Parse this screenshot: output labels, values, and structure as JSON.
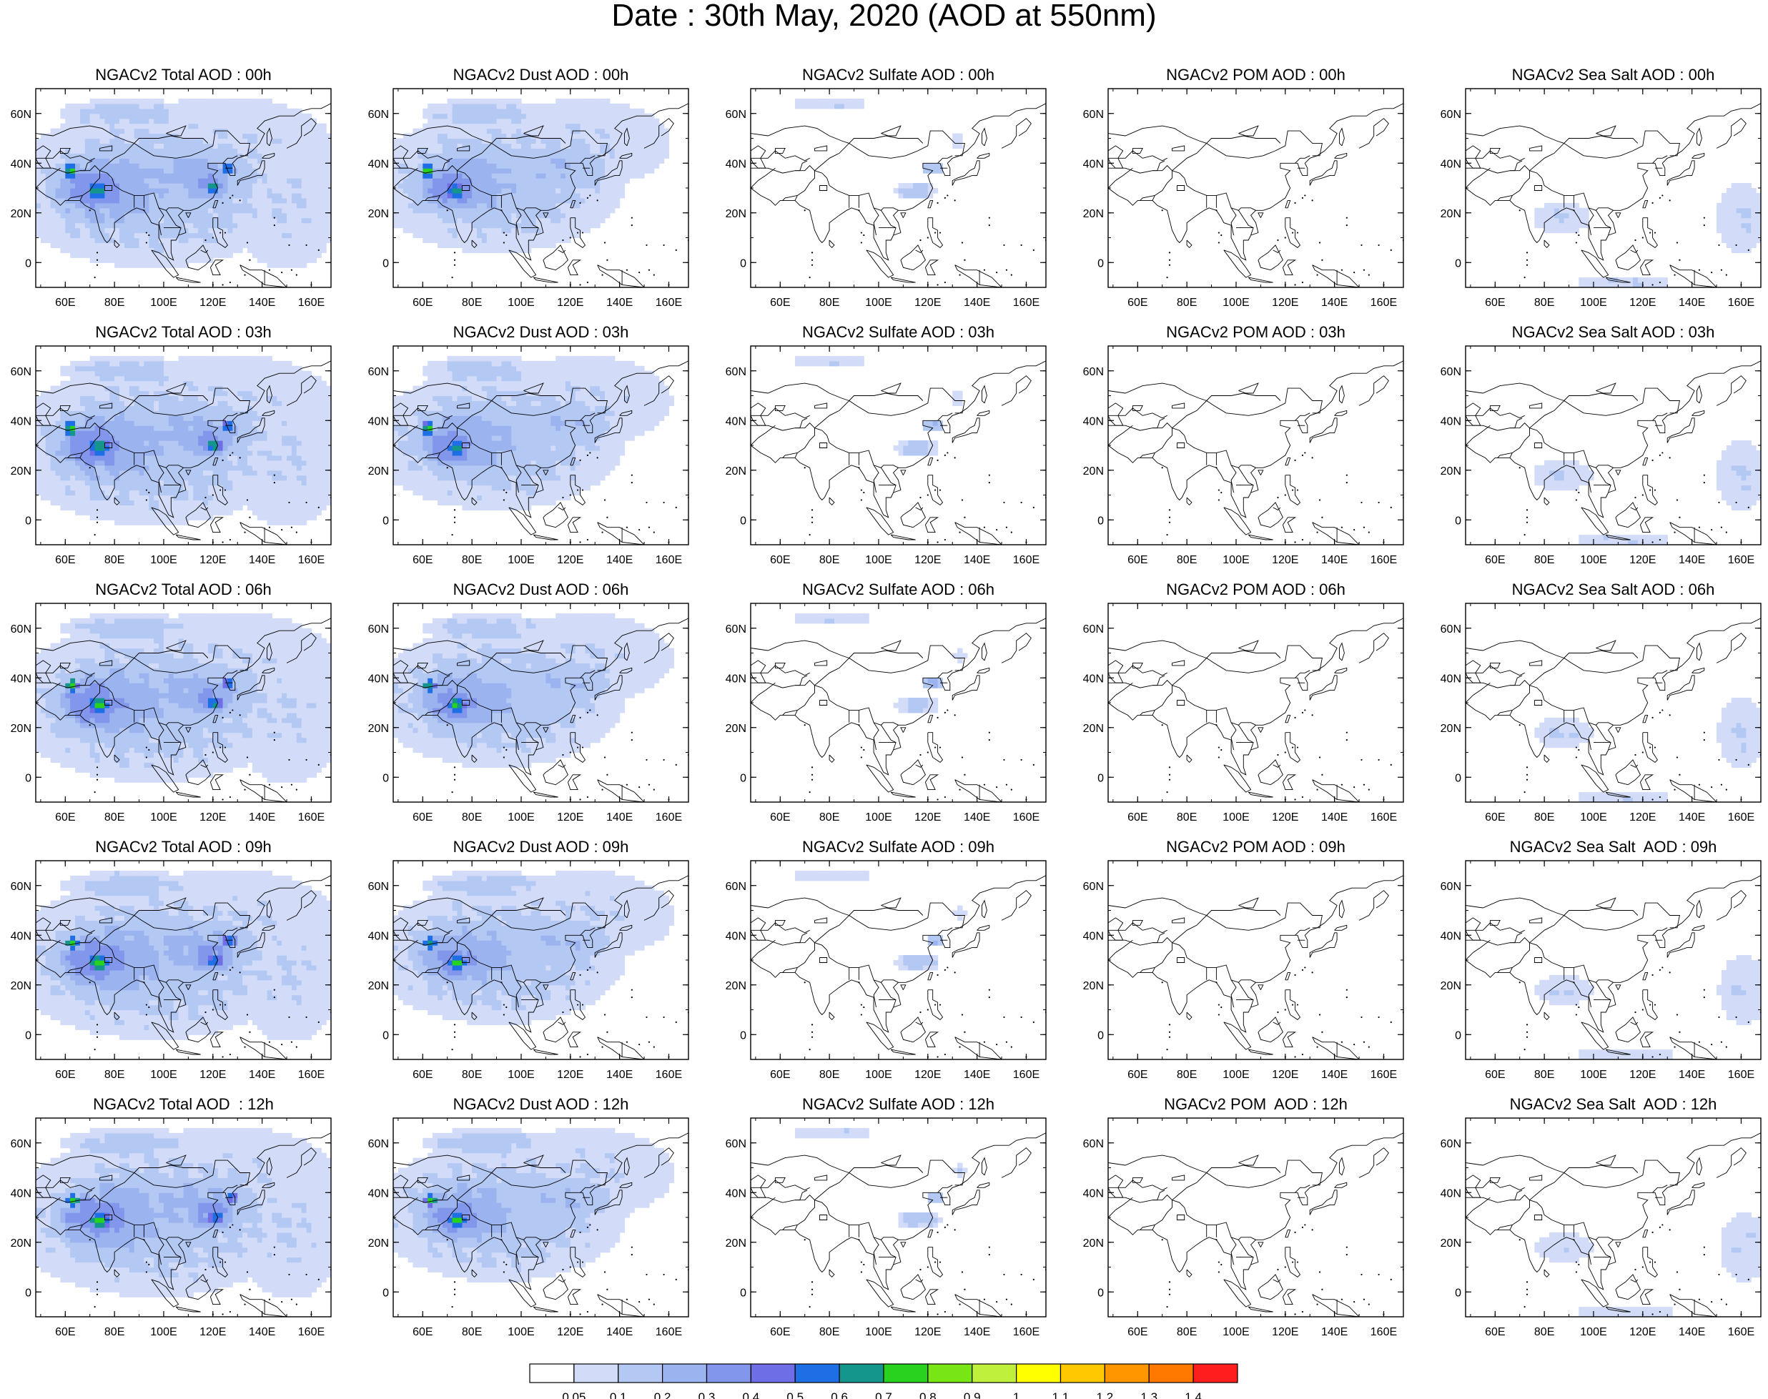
{
  "title": "Date : 30th May, 2020 (AOD at 550nm)",
  "axis_ticks": {
    "lat": [
      "60N",
      "40N",
      "20N",
      "0"
    ],
    "lat_values": [
      60,
      40,
      20,
      0
    ],
    "lon": [
      "60E",
      "80E",
      "100E",
      "120E",
      "140E",
      "160E"
    ],
    "lon_values": [
      60,
      80,
      100,
      120,
      140,
      160
    ]
  },
  "map_extent": {
    "lon_min": 48,
    "lon_max": 168,
    "lat_min": -10,
    "lat_max": 70
  },
  "panels": [
    [
      "NGACv2 Total AOD : 00h",
      "NGACv2 Dust AOD : 00h",
      "NGACv2 Sulfate AOD : 00h",
      "NGACv2 POM AOD : 00h",
      "NGACv2 Sea Salt AOD : 00h"
    ],
    [
      "NGACv2 Total AOD : 03h",
      "NGACv2 Dust AOD : 03h",
      "NGACv2 Sulfate AOD : 03h",
      "NGACv2 POM AOD : 03h",
      "NGACv2 Sea Salt AOD : 03h"
    ],
    [
      "NGACv2 Total AOD : 06h",
      "NGACv2 Dust AOD : 06h",
      "NGACv2 Sulfate AOD : 06h",
      "NGACv2 POM AOD : 06h",
      "NGACv2 Sea Salt AOD : 06h"
    ],
    [
      "NGACv2 Total AOD : 09h",
      "NGACv2 Dust AOD : 09h",
      "NGACv2 Sulfate AOD : 09h",
      "NGACv2 POM AOD : 09h",
      "NGACv2 Sea Salt  AOD : 09h"
    ],
    [
      "NGACv2 Total AOD  : 12h",
      "NGACv2 Dust AOD : 12h",
      "NGACv2 Sulfate AOD : 12h",
      "NGACv2 POM  AOD : 12h",
      "NGACv2 Sea Salt  AOD : 12h"
    ]
  ],
  "colorbar": {
    "labels": [
      "0.05",
      "0.1",
      "0.2",
      "0.3",
      "0.4",
      "0.5",
      "0.6",
      "0.7",
      "0.8",
      "0.9",
      "1",
      "1.1",
      "1.2",
      "1.3",
      "1.4"
    ],
    "colors": [
      "#ffffff",
      "#d2dcf8",
      "#b4c8f4",
      "#9bb4f0",
      "#8296ec",
      "#6e6ee6",
      "#1e6ee6",
      "#14968c",
      "#28d21e",
      "#78e614",
      "#bef03c",
      "#ffff00",
      "#ffc800",
      "#ff9600",
      "#ff7800",
      "#ff1e1e"
    ]
  },
  "chart_data": {
    "type": "heatmap",
    "title": "Date : 30th May, 2020 (AOD at 550nm)",
    "rows": [
      "00h",
      "03h",
      "06h",
      "09h",
      "12h"
    ],
    "columns": [
      "Total",
      "Dust",
      "Sulfate",
      "POM",
      "Sea Salt"
    ],
    "levels": [
      0.05,
      0.1,
      0.2,
      0.3,
      0.4,
      0.5,
      0.6,
      0.7,
      0.8,
      0.9,
      1,
      1.1,
      1.2,
      1.3,
      1.4
    ],
    "extent": {
      "lon": [
        48,
        168
      ],
      "lat": [
        -10,
        70
      ]
    },
    "blobs": {
      "Total": [
        {
          "lon": 95,
          "lat": 30,
          "rlon": 60,
          "rlat": 32,
          "v": 0.12
        },
        {
          "lon": 125,
          "lat": 45,
          "rlon": 45,
          "rlat": 22,
          "v": 0.1
        },
        {
          "lon": 85,
          "lat": 60,
          "rlon": 28,
          "rlat": 6,
          "v": 0.12
        },
        {
          "lon": 150,
          "lat": 25,
          "rlon": 22,
          "rlat": 28,
          "v": 0.1
        },
        {
          "lon": 78,
          "lat": 30,
          "rlon": 26,
          "rlat": 16,
          "v": 0.25
        },
        {
          "lon": 112,
          "lat": 35,
          "rlon": 26,
          "rlat": 12,
          "v": 0.22
        },
        {
          "lon": 72,
          "lat": 30,
          "rlon": 14,
          "rlat": 9,
          "v": 0.38
        },
        {
          "lon": 118,
          "lat": 32,
          "rlon": 9,
          "rlat": 7,
          "v": 0.33
        },
        {
          "lon": 73,
          "lat": 29,
          "rlon": 4,
          "rlat": 3,
          "v": 0.72
        },
        {
          "lon": 62,
          "lat": 37,
          "rlon": 2.5,
          "rlat": 2.5,
          "v": 0.75
        },
        {
          "lon": 120,
          "lat": 30,
          "rlon": 3,
          "rlat": 2.5,
          "v": 0.62
        },
        {
          "lon": 126,
          "lat": 38,
          "rlon": 2.5,
          "rlat": 2,
          "v": 0.6
        }
      ],
      "Dust": [
        {
          "lon": 90,
          "lat": 32,
          "rlon": 52,
          "rlat": 28,
          "v": 0.12
        },
        {
          "lon": 125,
          "lat": 48,
          "rlon": 36,
          "rlat": 18,
          "v": 0.1
        },
        {
          "lon": 85,
          "lat": 60,
          "rlon": 26,
          "rlat": 6,
          "v": 0.12
        },
        {
          "lon": 78,
          "lat": 32,
          "rlon": 24,
          "rlat": 14,
          "v": 0.24
        },
        {
          "lon": 115,
          "lat": 38,
          "rlon": 20,
          "rlat": 9,
          "v": 0.2
        },
        {
          "lon": 72,
          "lat": 30,
          "rlon": 12,
          "rlat": 8,
          "v": 0.36
        },
        {
          "lon": 73,
          "lat": 29,
          "rlon": 3.5,
          "rlat": 2.5,
          "v": 0.72
        },
        {
          "lon": 62,
          "lat": 37,
          "rlon": 2.5,
          "rlat": 2.5,
          "v": 0.72
        }
      ],
      "Sulfate": [
        {
          "lon": 115,
          "lat": 29,
          "rlon": 9,
          "rlat": 4,
          "v": 0.12
        },
        {
          "lon": 122,
          "lat": 38,
          "rlon": 4,
          "rlat": 3,
          "v": 0.2
        },
        {
          "lon": 80,
          "lat": 64,
          "rlon": 16,
          "rlat": 2.5,
          "v": 0.1
        },
        {
          "lon": 132,
          "lat": 49,
          "rlon": 2.5,
          "rlat": 2.5,
          "v": 0.1
        }
      ],
      "POM": [],
      "Sea Salt": [
        {
          "lon": 87,
          "lat": 18,
          "rlon": 12,
          "rlat": 6,
          "v": 0.1
        },
        {
          "lon": 160,
          "lat": 18,
          "rlon": 10,
          "rlat": 14,
          "v": 0.1
        },
        {
          "lon": 112,
          "lat": -8,
          "rlon": 20,
          "rlat": 2.5,
          "v": 0.1
        }
      ]
    }
  }
}
